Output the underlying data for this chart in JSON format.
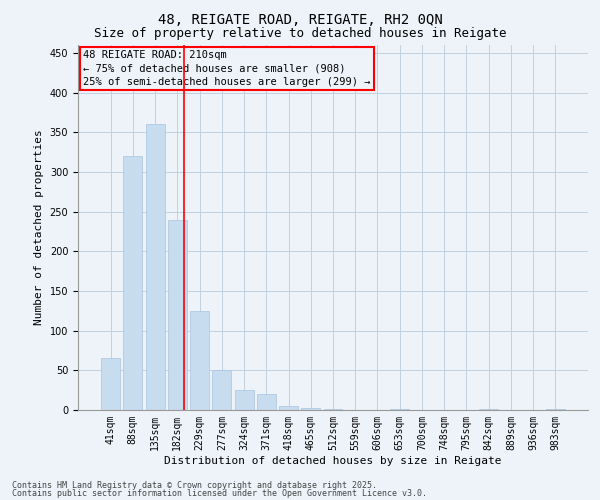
{
  "title1": "48, REIGATE ROAD, REIGATE, RH2 0QN",
  "title2": "Size of property relative to detached houses in Reigate",
  "xlabel": "Distribution of detached houses by size in Reigate",
  "ylabel": "Number of detached properties",
  "categories": [
    "41sqm",
    "88sqm",
    "135sqm",
    "182sqm",
    "229sqm",
    "277sqm",
    "324sqm",
    "371sqm",
    "418sqm",
    "465sqm",
    "512sqm",
    "559sqm",
    "606sqm",
    "653sqm",
    "700sqm",
    "748sqm",
    "795sqm",
    "842sqm",
    "889sqm",
    "936sqm",
    "983sqm"
  ],
  "values": [
    65,
    320,
    360,
    240,
    125,
    50,
    25,
    20,
    5,
    2,
    1,
    0,
    0,
    1,
    0,
    0,
    0,
    1,
    0,
    0,
    1
  ],
  "bar_color": "#c8dcf0",
  "bar_edge_color": "#a8c4e0",
  "grid_color": "#c0d0e0",
  "background_color": "#eef3f9",
  "annotation_box_text": "48 REIGATE ROAD: 210sqm\n← 75% of detached houses are smaller (908)\n25% of semi-detached houses are larger (299) →",
  "annotation_box_color": "red",
  "vline_x_index": 3.3,
  "vline_color": "red",
  "ylim": [
    0,
    460
  ],
  "yticks": [
    0,
    50,
    100,
    150,
    200,
    250,
    300,
    350,
    400,
    450
  ],
  "footer1": "Contains HM Land Registry data © Crown copyright and database right 2025.",
  "footer2": "Contains public sector information licensed under the Open Government Licence v3.0.",
  "title_fontsize": 10,
  "subtitle_fontsize": 9,
  "axis_label_fontsize": 8,
  "tick_fontsize": 7,
  "annotation_fontsize": 7.5,
  "footer_fontsize": 6
}
